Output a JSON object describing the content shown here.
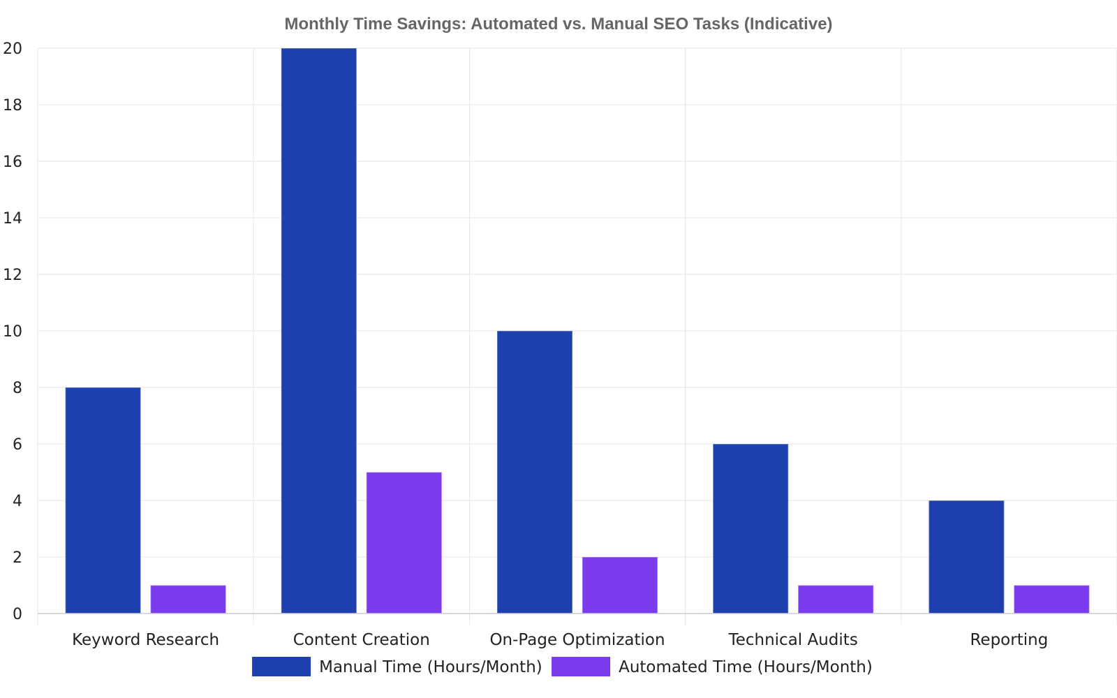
{
  "chart_data": {
    "type": "bar",
    "title": "Monthly Time Savings: Automated vs. Manual SEO Tasks (Indicative)",
    "xlabel": "",
    "ylabel": "",
    "categories": [
      "Keyword Research",
      "Content Creation",
      "On-Page Optimization",
      "Technical Audits",
      "Reporting"
    ],
    "series": [
      {
        "name": "Manual Time (Hours/Month)",
        "values": [
          8,
          20,
          10,
          6,
          4
        ],
        "color": "#1e40af"
      },
      {
        "name": "Automated Time (Hours/Month)",
        "values": [
          1,
          5,
          2,
          1,
          1
        ],
        "color": "#7c3aed"
      }
    ],
    "ylim": [
      0,
      20
    ],
    "yticks": [
      0,
      2,
      4,
      6,
      8,
      10,
      12,
      14,
      16,
      18,
      20
    ],
    "grid": true,
    "legend": "bottom-center"
  }
}
